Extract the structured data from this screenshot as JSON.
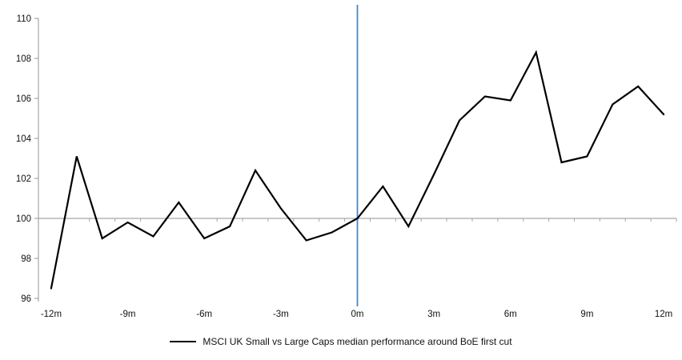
{
  "chart_data": {
    "type": "line",
    "title": "",
    "xlabel": "",
    "ylabel": "",
    "xlim": [
      -12.5,
      12.5
    ],
    "ylim": [
      96,
      110
    ],
    "y_ticks": [
      96,
      98,
      100,
      102,
      104,
      106,
      108,
      110
    ],
    "x_tick_labels": [
      "-12m",
      "-9m",
      "-6m",
      "-3m",
      "0m",
      "3m",
      "6m",
      "9m",
      "12m"
    ],
    "x_tick_values": [
      -12,
      -9,
      -6,
      -3,
      0,
      3,
      6,
      9,
      12
    ],
    "x_minor_tick_step": 1,
    "grid": false,
    "baseline_value": 100,
    "axis_color": "#A6A6A6",
    "event_line": {
      "x": 0,
      "color": "#4A86C2"
    },
    "legend_position": "bottom",
    "series": [
      {
        "name": "MSCI UK Small vs Large Caps median performance around BoE first cut",
        "color": "#000000",
        "x": [
          -12,
          -11,
          -10,
          -9,
          -8,
          -7,
          -6,
          -5,
          -4,
          -3,
          -2,
          -1,
          0,
          1,
          2,
          3,
          4,
          5,
          6,
          7,
          8,
          9,
          10,
          11,
          12
        ],
        "values": [
          96.5,
          103.1,
          99.0,
          99.8,
          99.1,
          100.8,
          99.0,
          99.6,
          102.4,
          100.5,
          98.9,
          99.3,
          100.0,
          101.6,
          99.6,
          102.2,
          104.9,
          106.1,
          105.9,
          108.3,
          102.8,
          103.1,
          105.7,
          106.6,
          105.2
        ]
      }
    ]
  }
}
